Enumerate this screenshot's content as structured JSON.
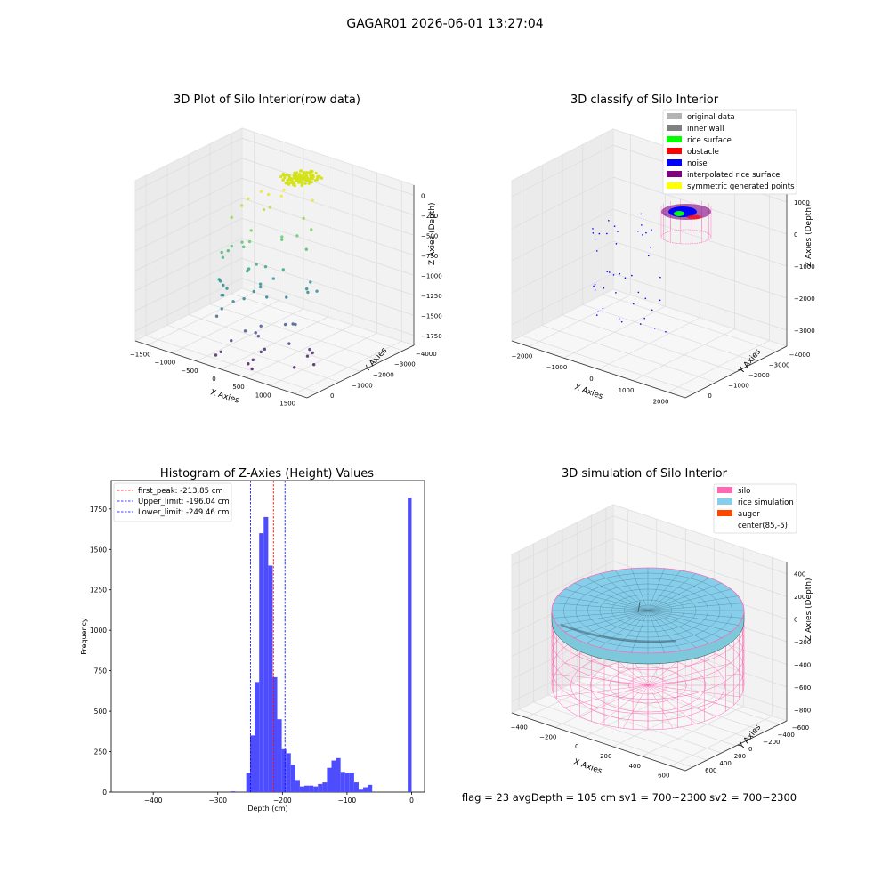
{
  "suptitle": "GAGAR01 2026-06-01 13:27:04",
  "status_line": "flag = 23   avgDepth = 105 cm   sv1 = 700~2300   sv2 = 700~2300",
  "chart_data": [
    {
      "type": "scatter",
      "panel": "3d",
      "title": "3D Plot of Silo Interior(row data)",
      "xlabel": "X Axies",
      "ylabel": "Y Axies",
      "zlabel": "Z Axies (Depth)",
      "x_ticks": [
        "−1500",
        "−1000",
        "−500",
        "0",
        "500",
        "1000",
        "1500"
      ],
      "y_ticks": [
        "−4000",
        "−3000",
        "−2000",
        "−1000",
        "0"
      ],
      "z_ticks": [
        "−1750",
        "−1500",
        "−1250",
        "−1000",
        "−750",
        "−500",
        "−250",
        "0"
      ],
      "colormap": "viridis",
      "grid": true
    },
    {
      "type": "scatter",
      "panel": "3d",
      "title": "3D classify of Silo Interior",
      "xlabel": "X Axies",
      "ylabel": "Y Axies",
      "zlabel": "Z Axies (Depth)",
      "x_ticks": [
        "−2000",
        "−1000",
        "0",
        "1000",
        "2000"
      ],
      "y_ticks": [
        "−4000",
        "−3000",
        "−2000",
        "−1000",
        "0"
      ],
      "z_ticks": [
        "−3000",
        "−2000",
        "−1000",
        "0",
        "1000"
      ],
      "legend_position": "top-right",
      "legend": [
        {
          "label": "original data",
          "color": "#b3b3b3"
        },
        {
          "label": "inner wall",
          "color": "#808080"
        },
        {
          "label": "rice surface",
          "color": "#00ff00"
        },
        {
          "label": "obstacle",
          "color": "#ff0000"
        },
        {
          "label": "noise",
          "color": "#0000ff"
        },
        {
          "label": "interpolated rice surface",
          "color": "#800080"
        },
        {
          "label": "symmetric generated points",
          "color": "#ffff00"
        }
      ],
      "grid": true
    },
    {
      "type": "bar",
      "panel": "histogram",
      "title": "Histogram of Z-Axies (Height) Values",
      "xlabel": "Depth (cm)",
      "ylabel": "Frequency",
      "xlim": [
        -465,
        20
      ],
      "ylim": [
        0,
        1925
      ],
      "x_ticks": [
        -400,
        -300,
        -200,
        -100,
        0
      ],
      "y_ticks": [
        0,
        250,
        500,
        750,
        1000,
        1250,
        1500,
        1750
      ],
      "bar_color": "#4d4dff",
      "bins": [
        {
          "x0": -280,
          "x1": -273,
          "value": 5
        },
        {
          "x0": -256,
          "x1": -250,
          "value": 120
        },
        {
          "x0": -250,
          "x1": -243,
          "value": 350
        },
        {
          "x0": -243,
          "x1": -236,
          "value": 680
        },
        {
          "x0": -236,
          "x1": -229,
          "value": 1600
        },
        {
          "x0": -229,
          "x1": -222,
          "value": 1700
        },
        {
          "x0": -222,
          "x1": -215,
          "value": 1400
        },
        {
          "x0": -215,
          "x1": -208,
          "value": 710
        },
        {
          "x0": -208,
          "x1": -201,
          "value": 450
        },
        {
          "x0": -201,
          "x1": -194,
          "value": 265
        },
        {
          "x0": -194,
          "x1": -187,
          "value": 240
        },
        {
          "x0": -187,
          "x1": -180,
          "value": 170
        },
        {
          "x0": -180,
          "x1": -173,
          "value": 75
        },
        {
          "x0": -173,
          "x1": -166,
          "value": 35
        },
        {
          "x0": -166,
          "x1": -159,
          "value": 40
        },
        {
          "x0": -159,
          "x1": -152,
          "value": 40
        },
        {
          "x0": -152,
          "x1": -145,
          "value": 35
        },
        {
          "x0": -145,
          "x1": -138,
          "value": 50
        },
        {
          "x0": -138,
          "x1": -131,
          "value": 60
        },
        {
          "x0": -131,
          "x1": -124,
          "value": 150
        },
        {
          "x0": -124,
          "x1": -117,
          "value": 195
        },
        {
          "x0": -117,
          "x1": -110,
          "value": 210
        },
        {
          "x0": -110,
          "x1": -103,
          "value": 125
        },
        {
          "x0": -103,
          "x1": -96,
          "value": 120
        },
        {
          "x0": -96,
          "x1": -89,
          "value": 120
        },
        {
          "x0": -89,
          "x1": -82,
          "value": 60
        },
        {
          "x0": -82,
          "x1": -75,
          "value": 15
        },
        {
          "x0": -75,
          "x1": -68,
          "value": 30
        },
        {
          "x0": -68,
          "x1": -61,
          "value": 45
        },
        {
          "x0": -6,
          "x1": 0,
          "value": 1820
        }
      ],
      "vlines": [
        {
          "label": "first_peak: -213.85 cm",
          "x": -213.85,
          "color": "#ff0000"
        },
        {
          "label": "Upper_limit: -196.04 cm",
          "x": -196.04,
          "color": "#0000ff"
        },
        {
          "label": "Lower_limit: -249.46 cm",
          "x": -249.46,
          "color": "#0000ff"
        }
      ],
      "legend_position": "top-left"
    },
    {
      "type": "surface",
      "panel": "3d",
      "title": "3D simulation of Silo Interior",
      "xlabel": "X Axies",
      "ylabel": "Y Axies",
      "zlabel": "Z Axies (Depth)",
      "x_ticks": [
        "−400",
        "−200",
        "0",
        "200",
        "400",
        "600"
      ],
      "y_ticks": [
        "−600",
        "−400",
        "−200",
        "0",
        "200",
        "400",
        "600"
      ],
      "z_ticks": [
        "−800",
        "−600",
        "−400",
        "−200",
        "0",
        "200",
        "400"
      ],
      "legend_position": "top-right",
      "legend": [
        {
          "label": "silo",
          "color": "#ff69b4"
        },
        {
          "label": "rice simulation",
          "color": "#87ceeb"
        },
        {
          "label": "auger",
          "color": "#ff4500"
        },
        {
          "label": "center(85,-5)",
          "color": "#ffffff"
        }
      ],
      "grid": true
    }
  ]
}
